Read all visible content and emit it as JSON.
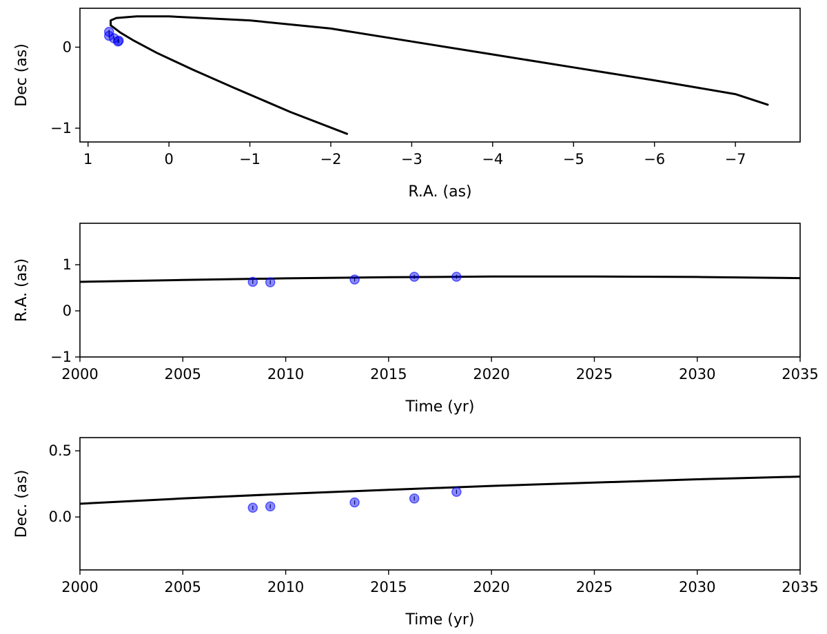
{
  "colors": {
    "model_curve": "#000000",
    "observation_marker": "#0000ff",
    "background": "#ffffff"
  },
  "chart_data": [
    {
      "type": "line",
      "xlabel": "R.A. (as)",
      "ylabel": "Dec (as)",
      "xlim": [
        1.1,
        -7.8
      ],
      "ylim": [
        -1.17,
        0.48
      ],
      "x_inverted": true,
      "x_ticks": [
        1,
        0,
        -1,
        -2,
        -3,
        -4,
        -5,
        -6,
        -7
      ],
      "x_tick_labels": [
        "1",
        "0",
        "−1",
        "−2",
        "−3",
        "−4",
        "−5",
        "−6",
        "−7"
      ],
      "y_ticks": [
        0,
        -1
      ],
      "y_tick_labels": [
        "0",
        "−1"
      ],
      "grid": false,
      "model_orbit": {
        "ra": [
          -2.2,
          -1.5,
          -0.8,
          -0.3,
          0.15,
          0.45,
          0.6,
          0.72,
          0.72,
          0.65,
          0.4,
          0.0,
          -1.0,
          -2.0,
          -3.0,
          -4.0,
          -5.0,
          -6.0,
          -7.0,
          -7.4
        ],
        "dec": [
          -1.07,
          -0.8,
          -0.5,
          -0.28,
          -0.07,
          0.09,
          0.18,
          0.27,
          0.33,
          0.36,
          0.38,
          0.38,
          0.33,
          0.23,
          0.07,
          -0.09,
          -0.25,
          -0.41,
          -0.58,
          -0.71
        ]
      },
      "observations": {
        "ra": [
          0.63,
          0.62,
          0.68,
          0.74,
          0.74
        ],
        "dec": [
          0.07,
          0.08,
          0.11,
          0.14,
          0.19
        ]
      }
    },
    {
      "type": "line",
      "xlabel": "Time (yr)",
      "ylabel": "R.A. (as)",
      "xlim": [
        2000,
        2035
      ],
      "ylim": [
        -1,
        1.9
      ],
      "x_ticks": [
        2000,
        2005,
        2010,
        2015,
        2020,
        2025,
        2030,
        2035
      ],
      "x_tick_labels": [
        "2000",
        "2005",
        "2010",
        "2015",
        "2020",
        "2025",
        "2030",
        "2035"
      ],
      "y_ticks": [
        1,
        0,
        -1
      ],
      "y_tick_labels": [
        "1",
        "0",
        "−1"
      ],
      "grid": false,
      "model": {
        "time": [
          2000,
          2005,
          2010,
          2015,
          2020,
          2025,
          2030,
          2035
        ],
        "ra": [
          0.63,
          0.67,
          0.705,
          0.73,
          0.745,
          0.745,
          0.735,
          0.71
        ]
      },
      "observations": {
        "time": [
          2008.4,
          2009.25,
          2013.35,
          2016.25,
          2018.3
        ],
        "ra": [
          0.63,
          0.62,
          0.68,
          0.74,
          0.74
        ]
      }
    },
    {
      "type": "line",
      "xlabel": "Time (yr)",
      "ylabel": "Dec. (as)",
      "xlim": [
        2000,
        2035
      ],
      "ylim": [
        -0.4,
        0.6
      ],
      "x_ticks": [
        2000,
        2005,
        2010,
        2015,
        2020,
        2025,
        2030,
        2035
      ],
      "x_tick_labels": [
        "2000",
        "2005",
        "2010",
        "2015",
        "2020",
        "2025",
        "2030",
        "2035"
      ],
      "y_ticks": [
        0.5,
        0.0
      ],
      "y_tick_labels": [
        "0.5",
        "0.0"
      ],
      "grid": false,
      "model": {
        "time": [
          2000,
          2005,
          2010,
          2015,
          2020,
          2025,
          2030,
          2035
        ],
        "dec": [
          0.1,
          0.14,
          0.175,
          0.205,
          0.235,
          0.26,
          0.285,
          0.305
        ]
      },
      "observations": {
        "time": [
          2008.4,
          2009.25,
          2013.35,
          2016.25,
          2018.3
        ],
        "dec": [
          0.07,
          0.08,
          0.11,
          0.14,
          0.19
        ]
      }
    }
  ]
}
